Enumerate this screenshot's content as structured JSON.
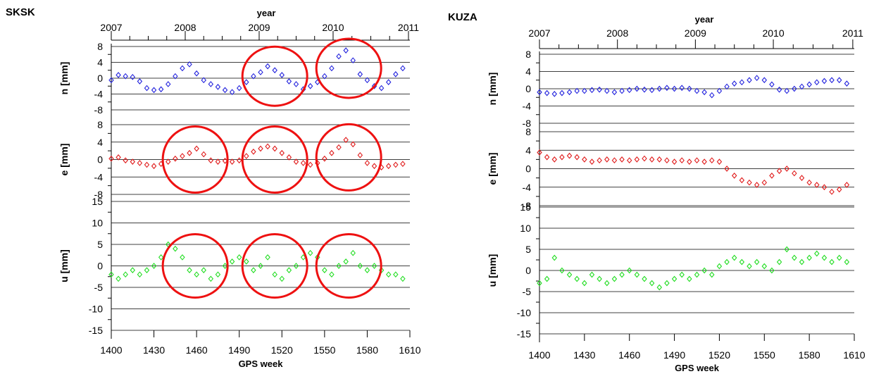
{
  "figure": {
    "panels": [
      {
        "station": "SKSK",
        "top_axis_label": "year",
        "year_ticks": [
          "2007",
          "2008",
          "2009",
          "2010",
          "2011"
        ],
        "year_tick_weeks": [
          1400,
          1452,
          1504,
          1556,
          1609
        ],
        "xlabel": "GPS week",
        "x_ticks": [
          1400,
          1430,
          1460,
          1490,
          1520,
          1550,
          1580,
          1610
        ],
        "xlim": [
          1400,
          1610
        ],
        "highlight_color": "#ee1111",
        "subplots": [
          {
            "ylabel": "n [mm]",
            "ylim": [
              -8,
              8
            ],
            "yticks": [
              -8,
              -4,
              0,
              4,
              8
            ],
            "color": "#2222dd",
            "circles": [
              {
                "week": 1515,
                "value": 0.5
              },
              {
                "week": 1567,
                "value": 2.5
              }
            ]
          },
          {
            "ylabel": "e [mm]",
            "ylim": [
              -8,
              8
            ],
            "yticks": [
              -8,
              -4,
              0,
              4,
              8
            ],
            "color": "#e01b1b",
            "circles": [
              {
                "week": 1459,
                "value": 0
              },
              {
                "week": 1515,
                "value": 0
              },
              {
                "week": 1567,
                "value": 0.5
              }
            ]
          },
          {
            "ylabel": "u [mm]",
            "ylim": [
              -15,
              15
            ],
            "yticks": [
              -15,
              -10,
              -5,
              0,
              5,
              10,
              15
            ],
            "color": "#22dd22",
            "circles": [
              {
                "week": 1459,
                "value": 0
              },
              {
                "week": 1515,
                "value": 0
              },
              {
                "week": 1567,
                "value": 0
              }
            ]
          }
        ]
      },
      {
        "station": "KUZA",
        "top_axis_label": "year",
        "year_ticks": [
          "2007",
          "2008",
          "2009",
          "2010",
          "2011"
        ],
        "year_tick_weeks": [
          1400,
          1452,
          1504,
          1556,
          1609
        ],
        "xlabel": "GPS week",
        "x_ticks": [
          1400,
          1430,
          1460,
          1490,
          1520,
          1550,
          1580,
          1610
        ],
        "xlim": [
          1400,
          1610
        ],
        "highlight_color": "#ee1111",
        "subplots": [
          {
            "ylabel": "n [mm]",
            "ylim": [
              -8,
              8
            ],
            "yticks": [
              -8,
              -4,
              0,
              4,
              8
            ],
            "color": "#2222dd",
            "circles": []
          },
          {
            "ylabel": "e [mm]",
            "ylim": [
              -8,
              8
            ],
            "yticks": [
              -8,
              -4,
              0,
              4,
              8
            ],
            "color": "#e01b1b",
            "circles": []
          },
          {
            "ylabel": "u [mm]",
            "ylim": [
              -15,
              15
            ],
            "yticks": [
              -15,
              -10,
              -5,
              0,
              5,
              10,
              15
            ],
            "color": "#22dd22",
            "circles": []
          }
        ]
      }
    ]
  },
  "chart_data": [
    {
      "type": "scatter",
      "title": "SKSK",
      "xlabel": "GPS week",
      "x2label": "year",
      "ylabel": "n [mm]",
      "xlim": [
        1400,
        1610
      ],
      "ylim": [
        -8,
        8
      ],
      "grid": true,
      "series": [
        {
          "x": [
            1400,
            1405,
            1410,
            1415,
            1420,
            1425,
            1430,
            1435,
            1440,
            1445,
            1450,
            1455,
            1460,
            1465,
            1470,
            1475,
            1480,
            1485,
            1490,
            1495,
            1500,
            1505,
            1510,
            1515,
            1520,
            1525,
            1530,
            1535,
            1540,
            1545,
            1550,
            1555,
            1560,
            1565,
            1570,
            1575,
            1580,
            1585,
            1590,
            1595,
            1600,
            1605
          ],
          "y": [
            -0.5,
            0.8,
            0.5,
            0.3,
            -0.8,
            -2.5,
            -3.0,
            -2.8,
            -1.5,
            0.5,
            2.5,
            3.5,
            1.2,
            -0.5,
            -1.5,
            -2.2,
            -3.0,
            -3.5,
            -2.5,
            -1.0,
            0.5,
            1.5,
            3.0,
            2.0,
            0.8,
            -0.8,
            -1.5,
            -2.8,
            -2.0,
            -1.0,
            0.5,
            2.5,
            5.5,
            7.0,
            4.5,
            1.0,
            -0.5,
            -2.0,
            -2.5,
            -1.0,
            1.0,
            2.5
          ]
        }
      ]
    },
    {
      "type": "scatter",
      "title": "SKSK",
      "xlabel": "GPS week",
      "ylabel": "e [mm]",
      "xlim": [
        1400,
        1610
      ],
      "ylim": [
        -8,
        8
      ],
      "grid": true,
      "series": [
        {
          "x": [
            1400,
            1405,
            1410,
            1415,
            1420,
            1425,
            1430,
            1435,
            1440,
            1445,
            1450,
            1455,
            1460,
            1465,
            1470,
            1475,
            1480,
            1485,
            1490,
            1495,
            1500,
            1505,
            1510,
            1515,
            1520,
            1525,
            1530,
            1535,
            1540,
            1545,
            1550,
            1555,
            1560,
            1565,
            1570,
            1575,
            1580,
            1585,
            1590,
            1595,
            1600,
            1605
          ],
          "y": [
            0.2,
            0.5,
            -0.2,
            -0.5,
            -0.8,
            -1.2,
            -1.5,
            -1.0,
            -0.5,
            0.2,
            0.8,
            1.5,
            2.5,
            1.2,
            -0.2,
            -0.5,
            -0.3,
            -0.5,
            -0.2,
            0.8,
            1.8,
            2.5,
            3.0,
            2.5,
            1.5,
            0.5,
            -0.5,
            -0.8,
            -1.2,
            -0.8,
            0.2,
            1.5,
            2.8,
            4.5,
            3.5,
            1.0,
            -0.8,
            -1.5,
            -1.8,
            -1.5,
            -1.2,
            -1.0
          ]
        }
      ]
    },
    {
      "type": "scatter",
      "title": "SKSK",
      "xlabel": "GPS week",
      "ylabel": "u [mm]",
      "xlim": [
        1400,
        1610
      ],
      "ylim": [
        -15,
        15
      ],
      "grid": true,
      "series": [
        {
          "x": [
            1400,
            1405,
            1410,
            1415,
            1420,
            1425,
            1430,
            1435,
            1440,
            1445,
            1450,
            1455,
            1460,
            1465,
            1470,
            1475,
            1480,
            1485,
            1490,
            1495,
            1500,
            1505,
            1510,
            1515,
            1520,
            1525,
            1530,
            1535,
            1540,
            1545,
            1550,
            1555,
            1560,
            1565,
            1570,
            1575,
            1580,
            1585,
            1590,
            1595,
            1600,
            1605
          ],
          "y": [
            -2,
            -3,
            -2,
            -1,
            -2,
            -1,
            0,
            2,
            5,
            4,
            2,
            -1,
            -2,
            -1,
            -3,
            -2,
            0,
            1,
            2,
            1,
            -1,
            0,
            2,
            -2,
            -3,
            -1,
            0,
            2,
            3,
            2,
            -1,
            -2,
            0,
            1,
            3,
            0,
            -1,
            0,
            -1,
            -2,
            -2,
            -3
          ]
        }
      ]
    },
    {
      "type": "scatter",
      "title": "KUZA",
      "xlabel": "GPS week",
      "x2label": "year",
      "ylabel": "n [mm]",
      "xlim": [
        1400,
        1610
      ],
      "ylim": [
        -8,
        8
      ],
      "grid": true,
      "series": [
        {
          "x": [
            1400,
            1405,
            1410,
            1415,
            1420,
            1425,
            1430,
            1435,
            1440,
            1445,
            1450,
            1455,
            1460,
            1465,
            1470,
            1475,
            1480,
            1485,
            1490,
            1495,
            1500,
            1505,
            1510,
            1515,
            1520,
            1525,
            1530,
            1535,
            1540,
            1545,
            1550,
            1555,
            1560,
            1565,
            1570,
            1575,
            1580,
            1585,
            1590,
            1595,
            1600,
            1605
          ],
          "y": [
            -0.8,
            -1.0,
            -1.2,
            -1.0,
            -0.8,
            -0.5,
            -0.5,
            -0.3,
            -0.2,
            -0.5,
            -0.8,
            -0.5,
            -0.3,
            0,
            -0.2,
            -0.3,
            0,
            0.2,
            0,
            0.2,
            0,
            -0.5,
            -0.8,
            -1.5,
            -0.5,
            0.5,
            1.2,
            1.5,
            2.0,
            2.5,
            2.0,
            1.0,
            -0.2,
            -0.5,
            0,
            0.5,
            1.0,
            1.5,
            1.8,
            2.0,
            2.0,
            1.2
          ]
        }
      ]
    },
    {
      "type": "scatter",
      "title": "KUZA",
      "xlabel": "GPS week",
      "ylabel": "e [mm]",
      "xlim": [
        1400,
        1610
      ],
      "ylim": [
        -8,
        8
      ],
      "grid": true,
      "series": [
        {
          "x": [
            1400,
            1405,
            1410,
            1415,
            1420,
            1425,
            1430,
            1435,
            1440,
            1445,
            1450,
            1455,
            1460,
            1465,
            1470,
            1475,
            1480,
            1485,
            1490,
            1495,
            1500,
            1505,
            1510,
            1515,
            1520,
            1525,
            1530,
            1535,
            1540,
            1545,
            1550,
            1555,
            1560,
            1565,
            1570,
            1575,
            1580,
            1585,
            1590,
            1595,
            1600,
            1605
          ],
          "y": [
            3.5,
            2.5,
            2.0,
            2.5,
            2.8,
            2.5,
            2.0,
            1.5,
            1.8,
            2.0,
            1.8,
            2.0,
            1.8,
            2.0,
            2.2,
            2.0,
            2.0,
            1.8,
            1.5,
            1.8,
            1.5,
            1.8,
            1.5,
            1.8,
            1.5,
            0,
            -1.5,
            -2.5,
            -3.0,
            -3.5,
            -3.0,
            -1.5,
            -0.5,
            0,
            -1.0,
            -2.0,
            -3.0,
            -3.5,
            -4.0,
            -5.0,
            -4.5,
            -3.5
          ]
        }
      ]
    },
    {
      "type": "scatter",
      "title": "KUZA",
      "xlabel": "GPS week",
      "ylabel": "u [mm]",
      "xlim": [
        1400,
        1610
      ],
      "ylim": [
        -15,
        15
      ],
      "grid": true,
      "series": [
        {
          "x": [
            1400,
            1405,
            1410,
            1415,
            1420,
            1425,
            1430,
            1435,
            1440,
            1445,
            1450,
            1455,
            1460,
            1465,
            1470,
            1475,
            1480,
            1485,
            1490,
            1495,
            1500,
            1505,
            1510,
            1515,
            1520,
            1525,
            1530,
            1535,
            1540,
            1545,
            1550,
            1555,
            1560,
            1565,
            1570,
            1575,
            1580,
            1585,
            1590,
            1595,
            1600,
            1605
          ],
          "y": [
            -3,
            -2,
            3,
            0,
            -1,
            -2,
            -3,
            -1,
            -2,
            -3,
            -2,
            -1,
            0,
            -1,
            -2,
            -3,
            -4,
            -3,
            -2,
            -1,
            -2,
            -1,
            0,
            -1,
            1,
            2,
            3,
            2,
            1,
            2,
            1,
            0,
            2,
            5,
            3,
            2,
            3,
            4,
            3,
            2,
            3,
            2
          ]
        }
      ]
    }
  ]
}
